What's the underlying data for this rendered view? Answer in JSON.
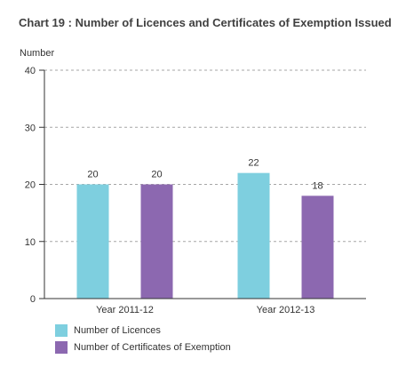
{
  "chart_data": {
    "type": "bar",
    "title": "Chart 19 : Number of Licences and Certificates of Exemption Issued",
    "ylabel": "Number",
    "xlabel": "",
    "ylim": [
      0,
      40
    ],
    "yticks": [
      0,
      10,
      20,
      30,
      40
    ],
    "grid": "dashed-horizontal",
    "legend_position": "bottom-left",
    "categories": [
      "Year 2011-12",
      "Year 2012-13"
    ],
    "series": [
      {
        "name": "Number of Licences",
        "color": "#7ecfdf",
        "values": [
          20,
          22
        ]
      },
      {
        "name": "Number of Certificates of Exemption",
        "color": "#8c68b0",
        "values": [
          20,
          18
        ]
      }
    ]
  }
}
